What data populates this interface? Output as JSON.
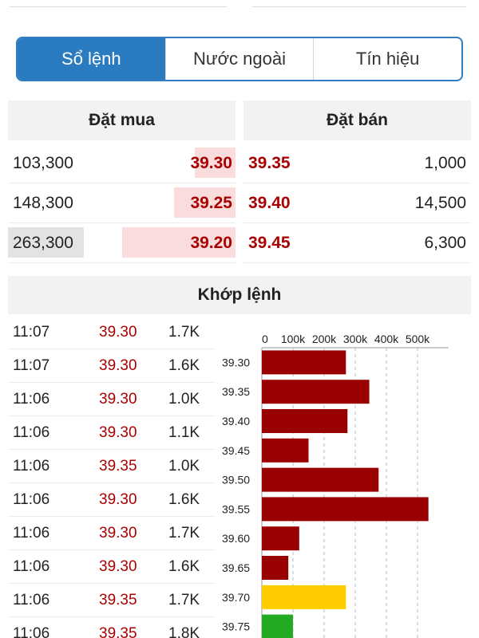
{
  "tabs": [
    {
      "label": "Sổ lệnh",
      "active": true
    },
    {
      "label": "Nước ngoài",
      "active": false
    },
    {
      "label": "Tín hiệu",
      "active": false
    }
  ],
  "order_book": {
    "buy_title": "Đặt mua",
    "sell_title": "Đặt bán",
    "buy_rows": [
      {
        "volume": "103,300",
        "price": "39.30",
        "depth": 0.18
      },
      {
        "volume": "148,300",
        "price": "39.25",
        "depth": 0.27
      },
      {
        "volume": "263,300",
        "price": "39.20",
        "depth": 0.5
      }
    ],
    "sell_rows": [
      {
        "price": "39.35",
        "volume": "1,000"
      },
      {
        "price": "39.40",
        "volume": "14,500"
      },
      {
        "price": "39.45",
        "volume": "6,300"
      }
    ]
  },
  "matching": {
    "title": "Khớp lệnh",
    "rows": [
      {
        "time": "11:07",
        "price": "39.30",
        "volume": "1.7K"
      },
      {
        "time": "11:07",
        "price": "39.30",
        "volume": "1.6K"
      },
      {
        "time": "11:06",
        "price": "39.30",
        "volume": "1.0K"
      },
      {
        "time": "11:06",
        "price": "39.30",
        "volume": "1.1K"
      },
      {
        "time": "11:06",
        "price": "39.35",
        "volume": "1.0K"
      },
      {
        "time": "11:06",
        "price": "39.30",
        "volume": "1.6K"
      },
      {
        "time": "11:06",
        "price": "39.30",
        "volume": "1.7K"
      },
      {
        "time": "11:06",
        "price": "39.30",
        "volume": "1.6K"
      },
      {
        "time": "11:06",
        "price": "39.35",
        "volume": "1.7K"
      },
      {
        "time": "11:06",
        "price": "39.35",
        "volume": "1.8K"
      }
    ]
  },
  "chart_data": {
    "type": "bar",
    "orientation": "horizontal",
    "categories": [
      "39.30",
      "39.35",
      "39.40",
      "39.45",
      "39.50",
      "39.55",
      "39.60",
      "39.65",
      "39.70",
      "39.75"
    ],
    "values": [
      270000,
      345000,
      275000,
      150000,
      375000,
      535000,
      120000,
      85000,
      270000,
      100000
    ],
    "bar_colors": [
      "#990000",
      "#990000",
      "#990000",
      "#990000",
      "#990000",
      "#990000",
      "#990000",
      "#990000",
      "#ffcc00",
      "#22aa22"
    ],
    "x_ticks": [
      "0",
      "100k",
      "200k",
      "300k",
      "400k",
      "500k"
    ],
    "xlim": [
      0,
      600000
    ],
    "grid": true
  }
}
